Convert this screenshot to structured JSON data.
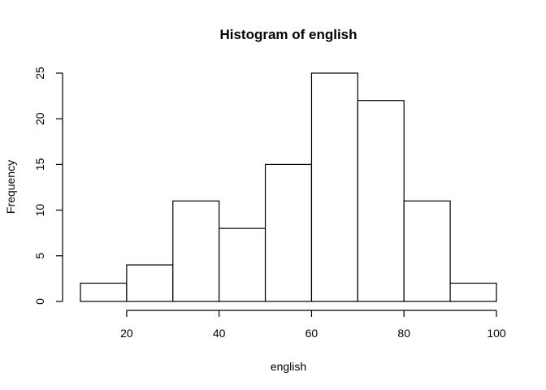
{
  "chart_data": {
    "type": "bar",
    "title": "Histogram of english",
    "xlabel": "english",
    "ylabel": "Frequency",
    "bins": [
      {
        "start": 10,
        "end": 20,
        "count": 2
      },
      {
        "start": 20,
        "end": 30,
        "count": 4
      },
      {
        "start": 30,
        "end": 40,
        "count": 11
      },
      {
        "start": 40,
        "end": 50,
        "count": 8
      },
      {
        "start": 50,
        "end": 60,
        "count": 15
      },
      {
        "start": 60,
        "end": 70,
        "count": 25
      },
      {
        "start": 70,
        "end": 80,
        "count": 22
      },
      {
        "start": 80,
        "end": 90,
        "count": 11
      },
      {
        "start": 90,
        "end": 100,
        "count": 2
      }
    ],
    "xticks": [
      20,
      40,
      60,
      80,
      100
    ],
    "yticks": [
      0,
      5,
      10,
      15,
      20,
      25
    ],
    "xlim": [
      10,
      100
    ],
    "ylim": [
      0,
      25
    ],
    "colors": {
      "bar_fill": "#ffffff",
      "bar_stroke": "#000000"
    }
  }
}
